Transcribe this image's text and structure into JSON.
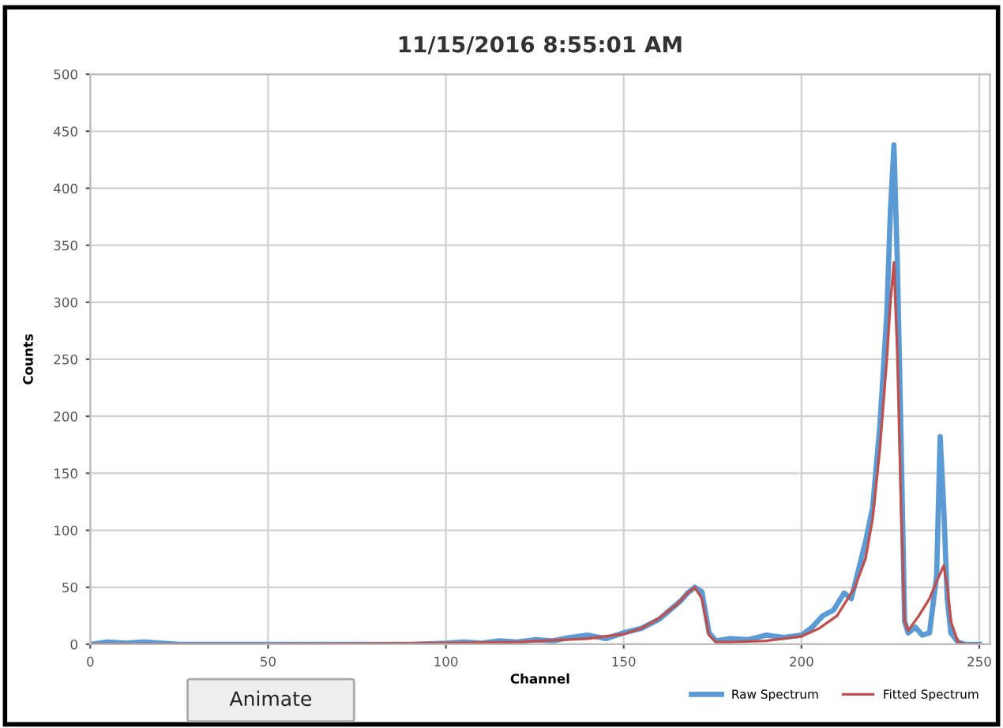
{
  "chart_data": {
    "type": "line",
    "title": "11/15/2016 8:55:01 AM",
    "xlabel": "Channel",
    "ylabel": "Counts",
    "annotations": [
      "Animate"
    ],
    "xlim": [
      0,
      253
    ],
    "xticks": [
      0,
      50,
      100,
      150,
      200,
      250
    ],
    "ylim": [
      0,
      500
    ],
    "yticks": [
      0,
      50,
      100,
      150,
      200,
      250,
      300,
      350,
      400,
      450,
      500
    ],
    "grid": true,
    "legend": "bottom right",
    "marker": "none",
    "line_style": "solid",
    "series": [
      {
        "name": "Raw Spectrum",
        "color": "#5b9bd5",
        "x": [
          0,
          5,
          10,
          15,
          20,
          25,
          30,
          40,
          50,
          60,
          70,
          80,
          90,
          100,
          105,
          110,
          115,
          120,
          125,
          130,
          135,
          140,
          145,
          150,
          155,
          160,
          163,
          166,
          168,
          170,
          172,
          174,
          176,
          180,
          185,
          190,
          195,
          200,
          203,
          206,
          209,
          212,
          214,
          216,
          218,
          220,
          222,
          224,
          225,
          226,
          227,
          228,
          229,
          230,
          232,
          234,
          236,
          238,
          239,
          240,
          241,
          242,
          244,
          246,
          250
        ],
        "values": [
          0,
          2,
          1,
          2,
          1,
          0,
          0,
          0,
          0,
          0,
          0,
          0,
          0,
          1,
          2,
          1,
          3,
          2,
          4,
          3,
          6,
          8,
          5,
          10,
          14,
          22,
          30,
          38,
          45,
          50,
          46,
          10,
          3,
          5,
          4,
          8,
          6,
          8,
          15,
          25,
          30,
          45,
          40,
          65,
          90,
          120,
          190,
          290,
          380,
          438,
          330,
          180,
          20,
          10,
          15,
          8,
          10,
          60,
          182,
          120,
          40,
          10,
          2,
          0,
          0
        ]
      },
      {
        "name": "Fitted Spectrum",
        "color": "#c0504d",
        "x": [
          0,
          50,
          100,
          120,
          140,
          150,
          155,
          160,
          165,
          168,
          170,
          172,
          174,
          176,
          180,
          190,
          200,
          205,
          210,
          215,
          218,
          220,
          222,
          224,
          225,
          226,
          227,
          228,
          229,
          230,
          233,
          236,
          238,
          240,
          241,
          242,
          244,
          246,
          250
        ],
        "values": [
          0,
          0,
          1,
          2,
          5,
          9,
          14,
          23,
          35,
          45,
          50,
          40,
          8,
          2,
          2,
          3,
          7,
          14,
          25,
          50,
          75,
          110,
          170,
          250,
          300,
          335,
          250,
          120,
          20,
          12,
          25,
          40,
          55,
          69,
          50,
          20,
          2,
          0,
          0
        ]
      }
    ]
  }
}
